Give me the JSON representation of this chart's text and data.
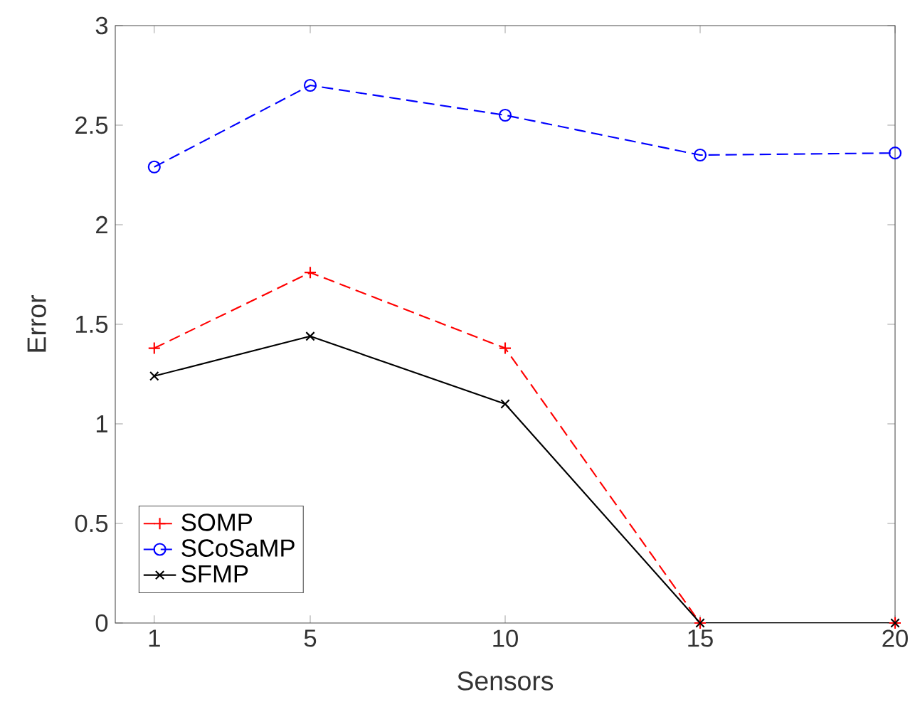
{
  "chart_data": {
    "type": "line",
    "xlabel": "Sensors",
    "ylabel": "Error",
    "x": [
      1,
      5,
      10,
      15,
      20
    ],
    "xlim": [
      0,
      20
    ],
    "xticks": [
      1,
      5,
      10,
      15,
      20
    ],
    "ylim": [
      0,
      3
    ],
    "yticks": [
      0,
      0.5,
      1,
      1.5,
      2,
      2.5,
      3
    ],
    "grid": false,
    "legend": "bottom left",
    "series": [
      {
        "name": "SOMP",
        "color": "#ff0000",
        "marker": "cross",
        "line_style": "dashed",
        "values": [
          1.38,
          1.76,
          1.38,
          0,
          0
        ]
      },
      {
        "name": "SCoSaMP",
        "color": "#0000ff",
        "marker": "circle",
        "line_style": "dashed",
        "values": [
          2.29,
          2.7,
          2.55,
          2.35,
          2.36
        ]
      },
      {
        "name": "SFMP",
        "color": "#000000",
        "marker": "x",
        "line_style": "solid",
        "values": [
          1.24,
          1.44,
          1.1,
          0,
          0
        ]
      }
    ]
  }
}
